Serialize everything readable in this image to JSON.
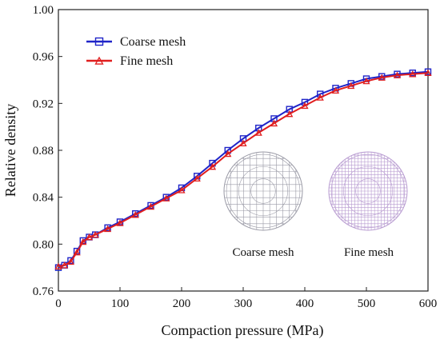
{
  "chart_data": {
    "type": "line",
    "xlabel": "Compaction pressure (MPa)",
    "ylabel": "Relative density",
    "xlim": [
      0,
      600
    ],
    "ylim": [
      0.76,
      1.0
    ],
    "xticks": [
      "0",
      "100",
      "200",
      "300",
      "400",
      "500",
      "600"
    ],
    "yticks": [
      "0.76",
      "0.80",
      "0.84",
      "0.88",
      "0.92",
      "0.96",
      "1.00"
    ],
    "grid": false,
    "legend_position": "top-left",
    "series": [
      {
        "name": "Coarse mesh",
        "color": "#1f24c8",
        "marker": "square",
        "x": [
          0,
          10,
          20,
          30,
          40,
          50,
          60,
          80,
          100,
          125,
          150,
          175,
          200,
          225,
          250,
          275,
          300,
          325,
          350,
          375,
          400,
          425,
          450,
          475,
          500,
          525,
          550,
          575,
          600
        ],
        "y": [
          0.78,
          0.782,
          0.786,
          0.794,
          0.803,
          0.806,
          0.808,
          0.814,
          0.819,
          0.826,
          0.833,
          0.84,
          0.848,
          0.858,
          0.869,
          0.88,
          0.89,
          0.899,
          0.907,
          0.915,
          0.921,
          0.928,
          0.933,
          0.937,
          0.941,
          0.943,
          0.945,
          0.946,
          0.947
        ]
      },
      {
        "name": "Fine mesh",
        "color": "#e01e1e",
        "marker": "triangle",
        "x": [
          0,
          10,
          20,
          30,
          40,
          50,
          60,
          80,
          100,
          125,
          150,
          175,
          200,
          225,
          250,
          275,
          300,
          325,
          350,
          375,
          400,
          425,
          450,
          475,
          500,
          525,
          550,
          575,
          600
        ],
        "y": [
          0.781,
          0.782,
          0.785,
          0.793,
          0.802,
          0.806,
          0.808,
          0.813,
          0.818,
          0.825,
          0.832,
          0.839,
          0.846,
          0.856,
          0.866,
          0.877,
          0.886,
          0.895,
          0.903,
          0.911,
          0.918,
          0.925,
          0.931,
          0.935,
          0.939,
          0.942,
          0.944,
          0.945,
          0.946
        ]
      }
    ]
  },
  "inset": {
    "coarse_label": "Coarse mesh",
    "fine_label": "Fine mesh"
  }
}
